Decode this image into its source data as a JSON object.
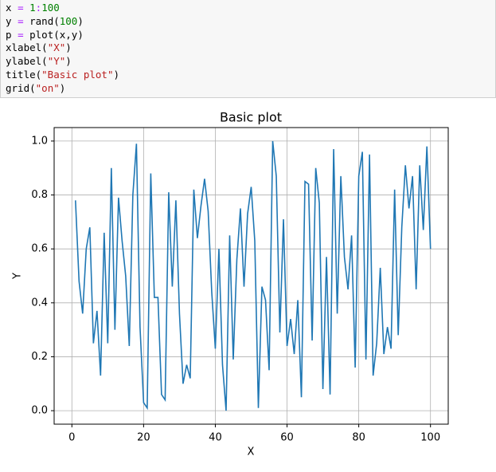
{
  "code": {
    "lines": [
      "x = 1:100",
      "y = rand(100)",
      "p = plot(x,y)",
      "xlabel(\"X\")",
      "ylabel(\"Y\")",
      "title(\"Basic plot\")",
      "grid(\"on\")"
    ]
  },
  "chart_data": {
    "type": "line",
    "title": "Basic plot",
    "x_label": "X",
    "y_label": "Y",
    "x": [
      1,
      2,
      3,
      4,
      5,
      6,
      7,
      8,
      9,
      10,
      11,
      12,
      13,
      14,
      15,
      16,
      17,
      18,
      19,
      20,
      21,
      22,
      23,
      24,
      25,
      26,
      27,
      28,
      29,
      30,
      31,
      32,
      33,
      34,
      35,
      36,
      37,
      38,
      39,
      40,
      41,
      42,
      43,
      44,
      45,
      46,
      47,
      48,
      49,
      50,
      51,
      52,
      53,
      54,
      55,
      56,
      57,
      58,
      59,
      60,
      61,
      62,
      63,
      64,
      65,
      66,
      67,
      68,
      69,
      70,
      71,
      72,
      73,
      74,
      75,
      76,
      77,
      78,
      79,
      80,
      81,
      82,
      83,
      84,
      85,
      86,
      87,
      88,
      89,
      90,
      91,
      92,
      93,
      94,
      95,
      96,
      97,
      98,
      99,
      100
    ],
    "series": [
      {
        "color": "#1f77b4",
        "values": [
          0.78,
          0.48,
          0.36,
          0.6,
          0.68,
          0.25,
          0.37,
          0.13,
          0.66,
          0.25,
          0.9,
          0.3,
          0.79,
          0.63,
          0.5,
          0.24,
          0.8,
          0.99,
          0.31,
          0.03,
          0.01,
          0.88,
          0.42,
          0.42,
          0.06,
          0.04,
          0.81,
          0.46,
          0.78,
          0.36,
          0.1,
          0.17,
          0.12,
          0.82,
          0.64,
          0.76,
          0.86,
          0.74,
          0.44,
          0.23,
          0.6,
          0.17,
          0.0,
          0.65,
          0.19,
          0.56,
          0.75,
          0.46,
          0.73,
          0.83,
          0.63,
          0.01,
          0.46,
          0.41,
          0.15,
          1.0,
          0.87,
          0.29,
          0.71,
          0.24,
          0.34,
          0.21,
          0.41,
          0.05,
          0.85,
          0.84,
          0.26,
          0.9,
          0.77,
          0.08,
          0.57,
          0.06,
          0.97,
          0.36,
          0.87,
          0.57,
          0.45,
          0.65,
          0.16,
          0.87,
          0.96,
          0.19,
          0.95,
          0.13,
          0.25,
          0.53,
          0.21,
          0.31,
          0.23,
          0.82,
          0.28,
          0.68,
          0.91,
          0.75,
          0.87,
          0.45,
          0.91,
          0.67,
          0.98,
          0.6
        ]
      }
    ],
    "xlim": [
      -4.95,
      104.95
    ],
    "ylim": [
      -0.05,
      1.05
    ],
    "xticks": [
      0,
      20,
      40,
      60,
      80,
      100
    ],
    "yticks": [
      {
        "value": 0,
        "label": "0.0"
      },
      0.2,
      0.4,
      0.6,
      0.8,
      {
        "value": 1,
        "label": "1.0"
      }
    ],
    "grid": true
  }
}
